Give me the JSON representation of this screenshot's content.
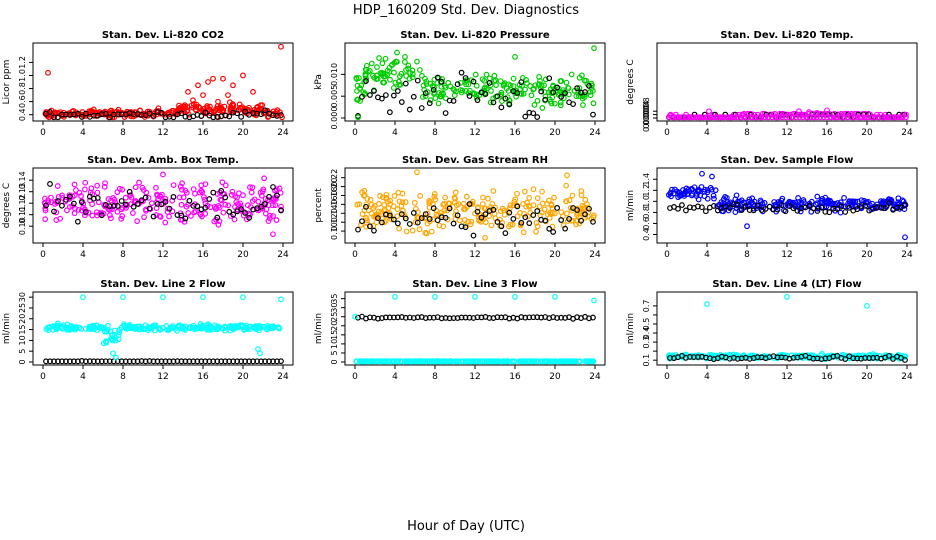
{
  "figure": {
    "title": "HDP_160209  Std. Dev. Diagnostics",
    "xlabel": "Hour of Day (UTC)"
  },
  "chart_data": [
    {
      "type": "scatter",
      "title": "Stan. Dev. Li-820 CO2",
      "ylabel": "Licor ppm",
      "color": "#ff0000",
      "xlim": [
        0,
        24
      ],
      "ylim": [
        0.35,
        1.45
      ],
      "yticks": [
        0.4,
        0.6,
        0.8,
        1.0,
        1.2
      ],
      "ytick_labels": [
        "0.4",
        "0.6",
        "0.8",
        "1.0",
        "1.2"
      ],
      "xticks": [
        0,
        4,
        8,
        12,
        16,
        20,
        24
      ],
      "base": 0.42,
      "spread": 0.05,
      "black_base": 0.4,
      "black_spread": 0.05,
      "outliers": [
        [
          0.5,
          1.04
        ],
        [
          14.5,
          0.75
        ],
        [
          15.5,
          0.85
        ],
        [
          16.5,
          0.9
        ],
        [
          17.0,
          0.95
        ],
        [
          18.0,
          0.95
        ],
        [
          19.0,
          0.85
        ],
        [
          20.0,
          1.0
        ],
        [
          23.8,
          1.44
        ],
        [
          23.9,
          0.28
        ],
        [
          15,
          0.62
        ],
        [
          16,
          0.7
        ],
        [
          17.5,
          0.6
        ],
        [
          18.5,
          0.7
        ],
        [
          21,
          0.75
        ]
      ]
    },
    {
      "type": "scatter",
      "title": "Stan. Dev. Li-820 Pressure",
      "ylabel": "kPa",
      "color": "#00cc00",
      "xlim": [
        0,
        24
      ],
      "ylim": [
        0,
        0.0165
      ],
      "yticks": [
        0.0,
        0.005,
        0.01
      ],
      "ytick_labels": [
        "0.000",
        "0.005",
        "0.010"
      ],
      "xticks": [
        0,
        4,
        8,
        12,
        16,
        20,
        24
      ],
      "base": 0.0065,
      "spread": 0.003,
      "black_base": 0.0045,
      "black_spread": 0.0045,
      "outliers": [
        [
          4.2,
          0.015
        ],
        [
          5.0,
          0.014
        ],
        [
          16.0,
          0.014
        ],
        [
          23.9,
          0.016
        ],
        [
          0.3,
          0.0
        ]
      ]
    },
    {
      "type": "scatter",
      "title": "Stan. Dev. Li-820 Temp.",
      "ylabel": "degrees C",
      "color": "#ff00ff",
      "xlim": [
        0,
        24
      ],
      "ylim": [
        0,
        0.0085
      ],
      "yticks": [
        0.0,
        0.0004,
        0.0008
      ],
      "ytick_labels": [
        "0.0000",
        "0.0004",
        "0.0008"
      ],
      "xticks": [
        0,
        4,
        8,
        12,
        16,
        20,
        24
      ],
      "levels": [
        0.0,
        0.0004,
        0.0005
      ],
      "outliers": [
        [
          4.2,
          0.0008
        ],
        [
          13.2,
          0.0008
        ],
        [
          16.0,
          0.0009
        ],
        [
          0.3,
          0.0003
        ],
        [
          7.5,
          0.0003
        ],
        [
          11.5,
          0.0003
        ],
        [
          14.2,
          0.0007
        ],
        [
          15.0,
          0.0006
        ]
      ]
    },
    {
      "type": "scatter",
      "title": "Stan. Dev. Amb. Box Temp.",
      "ylabel": "degrees C",
      "color": "#ff00ff",
      "xlim": [
        0,
        24
      ],
      "ylim": [
        0.088,
        0.148
      ],
      "yticks": [
        0.1,
        0.11,
        0.12,
        0.13,
        0.14
      ],
      "ytick_labels": [
        "0.10",
        "0.11",
        "0.12",
        "0.13",
        "0.14"
      ],
      "xticks": [
        0,
        4,
        8,
        12,
        16,
        20,
        24
      ],
      "base": 0.12,
      "spread": 0.015,
      "black_base": 0.12,
      "black_spread": 0.012,
      "outliers": [
        [
          23.0,
          0.093
        ],
        [
          12.0,
          0.145
        ]
      ]
    },
    {
      "type": "scatter",
      "title": "Stan. Dev. Gas Stream RH",
      "ylabel": "percent",
      "color": "#ffa500",
      "xlim": [
        0,
        24
      ],
      "ylim": [
        0.08,
        0.235
      ],
      "yticks": [
        0.1,
        0.12,
        0.14,
        0.16,
        0.18,
        0.2,
        0.22
      ],
      "ytick_labels": [
        "0.10",
        "0.12",
        "0.14",
        "0.16",
        "0.18",
        "0.20",
        "0.22"
      ],
      "xticks": [
        0,
        4,
        8,
        12,
        16,
        20,
        24
      ],
      "base": 0.145,
      "spread": 0.04,
      "black_base": 0.13,
      "black_spread": 0.03,
      "outliers": [
        [
          6.2,
          0.232
        ],
        [
          21.2,
          0.225
        ],
        [
          13.0,
          0.085
        ]
      ]
    },
    {
      "type": "scatter",
      "title": "Stan. Dev. Sample Flow",
      "ylabel": "ml/min",
      "color": "#0000ff",
      "xlim": [
        0,
        24
      ],
      "ylim": [
        0.3,
        1.55
      ],
      "yticks": [
        0.4,
        0.6,
        0.8,
        1.0,
        1.2,
        1.4
      ],
      "ytick_labels": [
        "0.4",
        "0.6",
        "0.8",
        "1.0",
        "1.2",
        "1.4"
      ],
      "xticks": [
        0,
        4,
        8,
        12,
        16,
        20,
        24
      ],
      "base": 0.95,
      "spread": 0.1,
      "black_base": 0.88,
      "black_spread": 0.07,
      "outliers": [
        [
          3.5,
          1.5
        ],
        [
          4.5,
          1.45
        ],
        [
          8.0,
          0.55
        ],
        [
          23.8,
          0.35
        ]
      ]
    },
    {
      "type": "scatter",
      "title": "Stan. Dev. Line 2 Flow",
      "ylabel": "ml/min",
      "color": "#00ffff",
      "xlim": [
        0,
        24
      ],
      "ylim": [
        0,
        31
      ],
      "yticks": [
        0,
        5,
        10,
        15,
        20,
        25,
        30
      ],
      "ytick_labels": [
        "0",
        "5",
        "10",
        "15",
        "20",
        "25",
        "30"
      ],
      "xticks": [
        0,
        4,
        8,
        12,
        16,
        20,
        24
      ],
      "base": 16,
      "spread": 1.2,
      "black_base": 0.2,
      "black_spread": 0.2,
      "outliers": [
        [
          4.0,
          30
        ],
        [
          8.0,
          30
        ],
        [
          12.0,
          30
        ],
        [
          16.0,
          30
        ],
        [
          20.0,
          30
        ],
        [
          23.8,
          29
        ],
        [
          7.0,
          4
        ],
        [
          7.3,
          2
        ],
        [
          21.5,
          6
        ],
        [
          21.7,
          4
        ]
      ]
    },
    {
      "type": "scatter",
      "title": "Stan. Dev. Line 3 Flow",
      "ylabel": "ml/min",
      "color": "#00ffff",
      "xlim": [
        0,
        24
      ],
      "ylim": [
        0,
        37
      ],
      "yticks": [
        0,
        5,
        10,
        15,
        20,
        25,
        30,
        35
      ],
      "ytick_labels": [
        "0",
        "5",
        "10",
        "15",
        "20",
        "25",
        "30",
        "35"
      ],
      "xticks": [
        0,
        4,
        8,
        12,
        16,
        20,
        24
      ],
      "base": 0.2,
      "spread": 0.2,
      "black_base": 24.5,
      "black_spread": 0.5,
      "outliers": [
        [
          0.0,
          25
        ],
        [
          4.0,
          36
        ],
        [
          8.0,
          36
        ],
        [
          12.0,
          36
        ],
        [
          16.0,
          36
        ],
        [
          20.0,
          36
        ],
        [
          23.9,
          34
        ]
      ]
    },
    {
      "type": "scatter",
      "title": "Stan. Dev. Line 4 (LT) Flow",
      "ylabel": "ml/min",
      "color": "#00ffff",
      "xlim": [
        0,
        24
      ],
      "ylim": [
        0.08,
        0.82
      ],
      "yticks": [
        0.1,
        0.2,
        0.3,
        0.4,
        0.5,
        0.6,
        0.7
      ],
      "ytick_labels": [
        "0.1",
        "",
        "0.3",
        "0.4",
        "0.5",
        "",
        "0.7"
      ],
      "xticks": [
        0,
        4,
        8,
        12,
        16,
        20,
        24
      ],
      "base": 0.14,
      "spread": 0.02,
      "black_base": 0.13,
      "black_spread": 0.02,
      "outliers": [
        [
          4.0,
          0.72
        ],
        [
          12.0,
          0.8
        ],
        [
          20.0,
          0.7
        ],
        [
          15.5,
          0.17
        ]
      ]
    }
  ]
}
